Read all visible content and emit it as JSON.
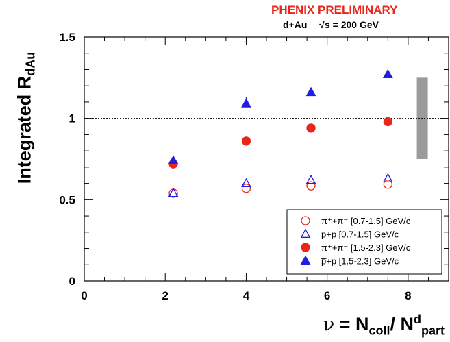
{
  "header": {
    "preliminary": "PHENIX PRELIMINARY",
    "system": "d+Au",
    "energy": "s = 200 GeV",
    "energy_prefix": "√"
  },
  "chart_data": {
    "type": "scatter",
    "ylabel_main": "Integrated R",
    "ylabel_sub": "dAu",
    "xlabel_nu": "ν",
    "xlabel_eq": " = N",
    "xlabel_sub1": "coll",
    "xlabel_slash": "/ N",
    "xlabel_sup": "d",
    "xlabel_sub2": "part",
    "xlim": [
      0,
      9
    ],
    "ylim": [
      0,
      1.5
    ],
    "xticks": [
      "0",
      "2",
      "4",
      "6",
      "8"
    ],
    "xtick_values": [
      0,
      2,
      4,
      6,
      8
    ],
    "yticks": [
      "0",
      "0.5",
      "1",
      "1.5"
    ],
    "ytick_values": [
      0,
      0.5,
      1,
      1.5
    ],
    "reference_line_y": 1.0,
    "systematic_band": {
      "x": 8.35,
      "y_low": 0.75,
      "y_high": 1.25,
      "color": "#9b9b9b"
    },
    "legend_position": "bottom-right",
    "series": [
      {
        "name": "π⁺+π⁻ [0.7-1.5] GeV/c",
        "marker": "circle-open",
        "color": "#e8261c",
        "x": [
          2.2,
          4.0,
          5.6,
          7.5
        ],
        "y": [
          0.54,
          0.57,
          0.585,
          0.595
        ]
      },
      {
        "name": "p̅+p [0.7-1.5] GeV/c",
        "marker": "triangle-open",
        "color": "#1f1fe0",
        "x": [
          2.2,
          4.0,
          5.6,
          7.5
        ],
        "y": [
          0.54,
          0.6,
          0.62,
          0.63
        ]
      },
      {
        "name": "π⁺+π⁻ [1.5-2.3] GeV/c",
        "marker": "circle-filled",
        "color": "#e8261c",
        "x": [
          2.2,
          4.0,
          5.6,
          7.5
        ],
        "y": [
          0.72,
          0.86,
          0.94,
          0.98
        ]
      },
      {
        "name": "p̅+p [1.5-2.3] GeV/c",
        "marker": "triangle-filled",
        "color": "#1f1fe0",
        "x": [
          2.2,
          4.0,
          5.6,
          7.5
        ],
        "y": [
          0.74,
          1.09,
          1.16,
          1.27
        ]
      }
    ]
  }
}
